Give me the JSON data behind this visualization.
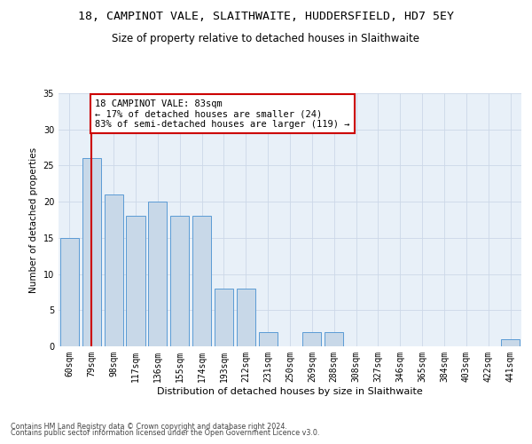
{
  "title1": "18, CAMPINOT VALE, SLAITHWAITE, HUDDERSFIELD, HD7 5EY",
  "title2": "Size of property relative to detached houses in Slaithwaite",
  "xlabel": "Distribution of detached houses by size in Slaithwaite",
  "ylabel": "Number of detached properties",
  "categories": [
    "60sqm",
    "79sqm",
    "98sqm",
    "117sqm",
    "136sqm",
    "155sqm",
    "174sqm",
    "193sqm",
    "212sqm",
    "231sqm",
    "250sqm",
    "269sqm",
    "288sqm",
    "308sqm",
    "327sqm",
    "346sqm",
    "365sqm",
    "384sqm",
    "403sqm",
    "422sqm",
    "441sqm"
  ],
  "values": [
    15,
    26,
    21,
    18,
    20,
    18,
    18,
    8,
    8,
    2,
    0,
    2,
    2,
    0,
    0,
    0,
    0,
    0,
    0,
    0,
    1
  ],
  "bar_color": "#c8d8e8",
  "bar_edge_color": "#5b9bd5",
  "ref_line_x": 1,
  "ref_line_color": "#cc0000",
  "annotation_box_text": "18 CAMPINOT VALE: 83sqm\n← 17% of detached houses are smaller (24)\n83% of semi-detached houses are larger (119) →",
  "annotation_box_color": "#cc0000",
  "ylim": [
    0,
    35
  ],
  "yticks": [
    0,
    5,
    10,
    15,
    20,
    25,
    30,
    35
  ],
  "grid_color": "#ccd8e8",
  "background_color": "#e8f0f8",
  "footer1": "Contains HM Land Registry data © Crown copyright and database right 2024.",
  "footer2": "Contains public sector information licensed under the Open Government Licence v3.0.",
  "title1_fontsize": 9.5,
  "title2_fontsize": 8.5,
  "xlabel_fontsize": 8,
  "ylabel_fontsize": 7.5,
  "tick_fontsize": 7,
  "annotation_fontsize": 7.5,
  "footer_fontsize": 5.8
}
